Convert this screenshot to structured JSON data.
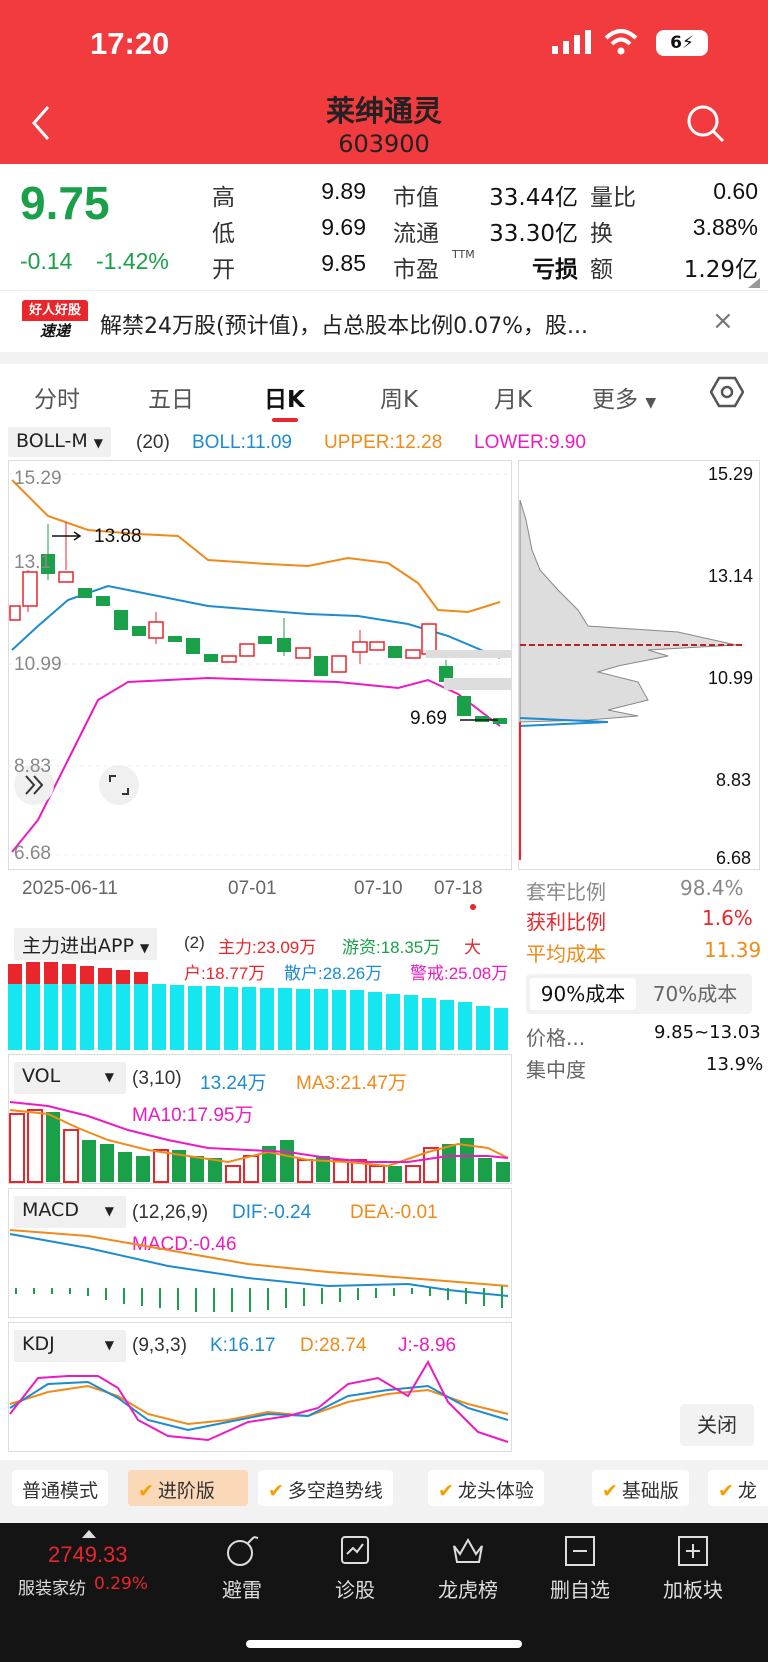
{
  "status": {
    "time": "17:20",
    "battery": "6"
  },
  "header": {
    "title": "莱绅通灵",
    "code": "603900"
  },
  "quote": {
    "price": "9.75",
    "change": "-0.14",
    "change_pct": "-1.42%",
    "high_label": "高",
    "high": "9.89",
    "low_label": "低",
    "low": "9.69",
    "open_label": "开",
    "open": "9.85",
    "mcap_label": "市值",
    "mcap": "33.44亿",
    "float_label": "流通",
    "float": "33.30亿",
    "pe_label": "市盈",
    "pe_tag": "TTM",
    "pe": "亏损",
    "vr_label": "量比",
    "vr": "0.60",
    "turn_label": "换",
    "turn": "3.88%",
    "amt_label": "额",
    "amt": "1.29亿"
  },
  "news": {
    "logo_top": "好人好股",
    "logo_bottom": "速递",
    "text": "解禁24万股(预计值)，占总股本比例0.07%，股...",
    "close": "×"
  },
  "tabs": [
    "分时",
    "五日",
    "日K",
    "周K",
    "月K",
    "更多"
  ],
  "boll": {
    "tag": "BOLL-M",
    "param": "(20)",
    "boll": "BOLL:11.09",
    "upper": "UPPER:12.28",
    "lower": "LOWER:9.90",
    "high_mark": "13.88",
    "low_mark": "9.69",
    "y_labels": [
      "15.29",
      "13.14",
      "10.99",
      "8.83",
      "6.68"
    ],
    "y_left": [
      "15.29",
      "13.1",
      "10.99",
      "8.83",
      "6.68"
    ]
  },
  "dates": [
    "2025-06-11",
    "07-01",
    "07-10",
    "07-18"
  ],
  "chip": {
    "y_labels": [
      "15.29",
      "13.14",
      "10.99",
      "8.83",
      "6.68"
    ],
    "trap_label": "套牢比例",
    "trap": "98.4%",
    "profit_label": "获利比例",
    "profit": "1.6%",
    "avg_label": "平均成本",
    "avg": "11.39",
    "tab90": "90%成本",
    "tab70": "70%成本",
    "range_label": "价格...",
    "range": "9.85~13.03",
    "conc_label": "集中度",
    "conc": "13.9%",
    "close": "关闭"
  },
  "flow": {
    "tag": "主力进出APP",
    "param": "(2)",
    "main": "主力:23.09万",
    "hot": "游资:18.35万",
    "big1": "大",
    "big2": "户:18.77万",
    "retail": "散户:28.26万",
    "alert": "警戒:25.08万"
  },
  "vol": {
    "tag": "VOL",
    "param": "(3,10)",
    "v": "13.24万",
    "ma3": "MA3:21.47万",
    "ma10": "MA10:17.95万"
  },
  "macd": {
    "tag": "MACD",
    "param": "(12,26,9)",
    "dif": "DIF:-0.24",
    "dea": "DEA:-0.01",
    "macd": "MACD:-0.46"
  },
  "kdj": {
    "tag": "KDJ",
    "param": "(9,3,3)",
    "k": "K:16.17",
    "d": "D:28.74",
    "j": "J:-8.96"
  },
  "bottom_tabs": [
    "普通模式",
    "进阶版",
    "多空趋势线",
    "龙头体验",
    "基础版",
    "龙"
  ],
  "bottom": {
    "index": "2749.33",
    "sector": "服装家纺",
    "sector_pct": "0.29%",
    "nav": [
      "避雷",
      "诊股",
      "龙虎榜",
      "删自选",
      "加板块"
    ]
  },
  "colors": {
    "red": "#e8262b",
    "green": "#1ba04a",
    "orange": "#f08a19",
    "blue": "#1d8bd0",
    "magenta": "#ec1bc1",
    "cyan": "#15e6f0"
  },
  "chart_data": [
    {
      "type": "candlestick",
      "title": "日K BOLL-M(20)",
      "ylim": [
        6.68,
        15.29
      ],
      "series": [
        {
          "name": "BOLL",
          "values": [
            11.09
          ]
        },
        {
          "name": "UPPER",
          "values": [
            12.28
          ]
        },
        {
          "name": "LOWER",
          "values": [
            9.9
          ]
        }
      ],
      "annotations": [
        "13.88",
        "9.69"
      ]
    },
    {
      "type": "bar",
      "title": "VOL(3,10)",
      "series": [
        {
          "name": "MA3",
          "values": [
            21.47
          ]
        },
        {
          "name": "MA10",
          "values": [
            17.95
          ]
        }
      ]
    }
  ]
}
